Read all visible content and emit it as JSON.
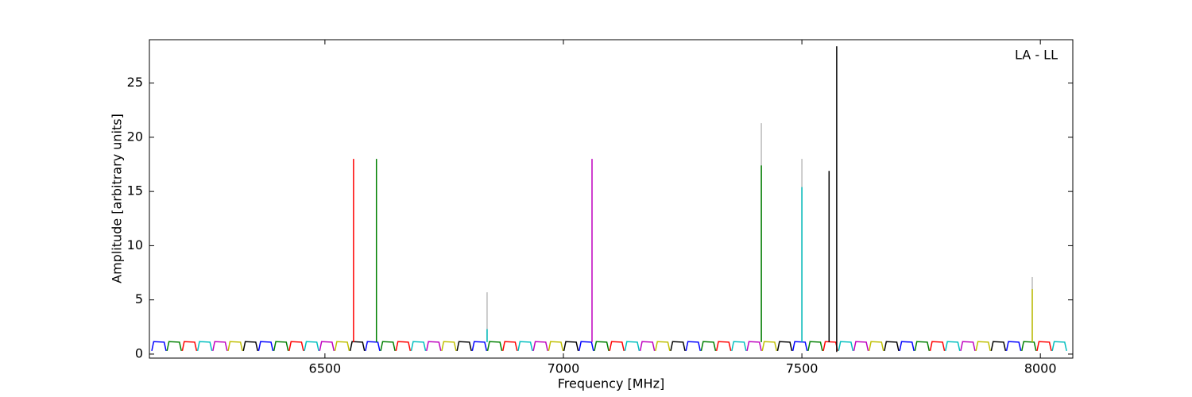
{
  "chart_data": {
    "type": "line",
    "xlabel": "Frequency [MHz]",
    "ylabel": "Amplitude [arbitrary units]",
    "annotation": "LA - LL",
    "xlim": [
      6132,
      8068
    ],
    "xticks": [
      6500,
      7000,
      7500,
      8000
    ],
    "ylim": [
      -0.37,
      29
    ],
    "yticks": [
      0,
      5,
      10,
      15,
      20,
      25
    ],
    "grid": false,
    "series": [
      {
        "color": "#bbbbbb",
        "x": [
          6840,
          6840,
          null,
          7415,
          7415,
          null,
          7500,
          7500,
          null,
          7983,
          7983
        ],
        "values": [
          1.1,
          5.7,
          null,
          1.1,
          21.3,
          null,
          1.1,
          18,
          null,
          1.1,
          7.1
        ]
      },
      {
        "color": "#0000ff",
        "x": [
          6137,
          6141,
          6163,
          6167,
          null,
          6361,
          6365,
          6387,
          6391,
          null,
          6585,
          6589,
          6611,
          6615,
          null,
          6809,
          6813,
          6835,
          6839,
          null,
          7033,
          7037,
          7059,
          7063,
          null,
          7257,
          7261,
          7283,
          7287,
          null,
          7481,
          7485,
          7507,
          7511,
          null,
          7705,
          7709,
          7731,
          7735,
          null,
          7929,
          7933,
          7955,
          7959
        ],
        "values": [
          0.3,
          1.15,
          1.1,
          0.3,
          null,
          0.3,
          1.15,
          1.1,
          0.3,
          null,
          0.3,
          1.15,
          1.1,
          0.3,
          null,
          0.3,
          1.15,
          1.1,
          0.3,
          null,
          0.3,
          1.15,
          1.1,
          0.3,
          null,
          0.3,
          1.15,
          1.1,
          0.3,
          null,
          0.3,
          1.15,
          1.1,
          0.3,
          null,
          0.3,
          1.15,
          1.1,
          0.3,
          null,
          0.3,
          1.15,
          1.1,
          0.3
        ]
      },
      {
        "color": "#008000",
        "x": [
          6169,
          6173,
          6195,
          6199,
          null,
          6393,
          6397,
          6419,
          6423,
          null,
          6617,
          6621,
          6643,
          6647,
          null,
          6841,
          6845,
          6867,
          6871,
          null,
          7065,
          7069,
          7091,
          7095,
          null,
          7289,
          7293,
          7315,
          7319,
          null,
          7513,
          7517,
          7539,
          7543,
          null,
          7737,
          7741,
          7763,
          7767,
          null,
          7961,
          7965,
          7987,
          7991
        ],
        "values": [
          0.3,
          1.15,
          1.1,
          0.3,
          null,
          0.3,
          1.15,
          1.1,
          0.3,
          null,
          0.3,
          1.15,
          1.1,
          0.3,
          null,
          0.3,
          1.15,
          1.1,
          0.3,
          null,
          0.3,
          1.15,
          1.1,
          0.3,
          null,
          0.3,
          1.15,
          1.1,
          0.3,
          null,
          0.3,
          1.15,
          1.1,
          0.3,
          null,
          0.3,
          1.15,
          1.1,
          0.3,
          null,
          0.3,
          1.15,
          1.1,
          0.3
        ]
      },
      {
        "color": "#ff0000",
        "x": [
          6201,
          6205,
          6227,
          6231,
          null,
          6425,
          6429,
          6451,
          6455,
          null,
          6649,
          6653,
          6675,
          6679,
          null,
          6873,
          6877,
          6899,
          6903,
          null,
          7097,
          7101,
          7123,
          7127,
          null,
          7321,
          7325,
          7347,
          7351,
          null,
          7545,
          7549,
          7571,
          7575,
          null,
          7769,
          7773,
          7795,
          7799,
          null,
          7993,
          7997,
          8019,
          8023
        ],
        "values": [
          0.3,
          1.15,
          1.1,
          0.3,
          null,
          0.3,
          1.15,
          1.1,
          0.3,
          null,
          0.3,
          1.15,
          1.1,
          0.3,
          null,
          0.3,
          1.15,
          1.1,
          0.3,
          null,
          0.3,
          1.15,
          1.1,
          0.3,
          null,
          0.3,
          1.15,
          1.1,
          0.3,
          null,
          0.3,
          1.15,
          1.1,
          0.3,
          null,
          0.3,
          1.15,
          1.1,
          0.3,
          null,
          0.3,
          1.15,
          1.1,
          0.3
        ]
      },
      {
        "color": "#00bfbf",
        "x": [
          6233,
          6237,
          6259,
          6263,
          null,
          6457,
          6461,
          6483,
          6487,
          null,
          6681,
          6685,
          6707,
          6711,
          null,
          6905,
          6909,
          6931,
          6935,
          null,
          7129,
          7133,
          7155,
          7159,
          null,
          7353,
          7357,
          7379,
          7383,
          null,
          7577,
          7581,
          7603,
          7607,
          null,
          7801,
          7805,
          7827,
          7831,
          null,
          8025,
          8029,
          8051,
          8055
        ],
        "values": [
          0.3,
          1.15,
          1.1,
          0.3,
          null,
          0.3,
          1.15,
          1.1,
          0.3,
          null,
          0.3,
          1.15,
          1.1,
          0.3,
          null,
          0.3,
          1.15,
          1.1,
          0.3,
          null,
          0.3,
          1.15,
          1.1,
          0.3,
          null,
          0.3,
          1.15,
          1.1,
          0.3,
          null,
          0.3,
          1.15,
          1.1,
          0.3,
          null,
          0.3,
          1.15,
          1.1,
          0.3,
          null,
          0.3,
          1.15,
          1.1,
          0.3
        ]
      },
      {
        "color": "#bf00bf",
        "x": [
          6265,
          6269,
          6291,
          6295,
          null,
          6489,
          6493,
          6515,
          6519,
          null,
          6713,
          6717,
          6739,
          6743,
          null,
          6937,
          6941,
          6963,
          6967,
          null,
          7161,
          7165,
          7187,
          7191,
          null,
          7385,
          7389,
          7411,
          7415,
          null,
          7609,
          7613,
          7635,
          7639,
          null,
          7833,
          7837,
          7859,
          7863
        ],
        "values": [
          0.3,
          1.15,
          1.1,
          0.3,
          null,
          0.3,
          1.15,
          1.1,
          0.3,
          null,
          0.3,
          1.15,
          1.1,
          0.3,
          null,
          0.3,
          1.15,
          1.1,
          0.3,
          null,
          0.3,
          1.15,
          1.1,
          0.3,
          null,
          0.3,
          1.15,
          1.1,
          0.3,
          null,
          0.3,
          1.15,
          1.1,
          0.3,
          null,
          0.3,
          1.15,
          1.1,
          0.3
        ]
      },
      {
        "color": "#bfbf00",
        "x": [
          6297,
          6301,
          6323,
          6327,
          null,
          6521,
          6525,
          6547,
          6551,
          null,
          6745,
          6749,
          6771,
          6775,
          null,
          6969,
          6973,
          6995,
          6999,
          null,
          7193,
          7197,
          7219,
          7223,
          null,
          7417,
          7421,
          7443,
          7447,
          null,
          7641,
          7645,
          7667,
          7671,
          null,
          7865,
          7869,
          7891,
          7895
        ],
        "values": [
          0.3,
          1.15,
          1.1,
          0.3,
          null,
          0.3,
          1.15,
          1.1,
          0.3,
          null,
          0.3,
          1.15,
          1.1,
          0.3,
          null,
          0.3,
          1.15,
          1.1,
          0.3,
          null,
          0.3,
          1.15,
          1.1,
          0.3,
          null,
          0.3,
          1.15,
          1.1,
          0.3,
          null,
          0.3,
          1.15,
          1.1,
          0.3,
          null,
          0.3,
          1.15,
          1.1,
          0.3
        ]
      },
      {
        "color": "#000000",
        "x": [
          6329,
          6333,
          6355,
          6359,
          null,
          6553,
          6557,
          6579,
          6583,
          null,
          6777,
          6781,
          6803,
          6807,
          null,
          7001,
          7005,
          7027,
          7031,
          null,
          7225,
          7229,
          7251,
          7255,
          null,
          7449,
          7453,
          7475,
          7479,
          null,
          7673,
          7677,
          7699,
          7703,
          null,
          7897,
          7901,
          7923,
          7927
        ],
        "values": [
          0.3,
          1.15,
          1.1,
          0.3,
          null,
          0.3,
          1.15,
          1.1,
          0.3,
          null,
          0.3,
          1.15,
          1.1,
          0.3,
          null,
          0.3,
          1.15,
          1.1,
          0.3,
          null,
          0.3,
          1.15,
          1.1,
          0.3,
          null,
          0.3,
          1.15,
          1.1,
          0.3,
          null,
          0.3,
          1.15,
          1.1,
          0.3,
          null,
          0.3,
          1.15,
          1.1,
          0.3
        ]
      },
      {
        "color": "#ff0000",
        "x": [
          6560,
          6560
        ],
        "values": [
          1.1,
          18
        ]
      },
      {
        "color": "#008000",
        "x": [
          6608,
          6608,
          null,
          7415,
          7415
        ],
        "values": [
          1.1,
          18,
          null,
          1.1,
          17.4
        ]
      },
      {
        "color": "#00bfbf",
        "x": [
          6840,
          6840,
          null,
          7500,
          7500
        ],
        "values": [
          1.1,
          2.3,
          null,
          1.1,
          15.4
        ]
      },
      {
        "color": "#bf00bf",
        "x": [
          7060,
          7060
        ],
        "values": [
          1.1,
          18
        ]
      },
      {
        "color": "#000000",
        "x": [
          7557,
          7557,
          null,
          7573,
          7573
        ],
        "values": [
          1.1,
          16.9,
          null,
          0.2,
          28.4
        ]
      },
      {
        "color": "#bfbf00",
        "x": [
          7983,
          7983
        ],
        "values": [
          1.1,
          6
        ]
      }
    ]
  }
}
